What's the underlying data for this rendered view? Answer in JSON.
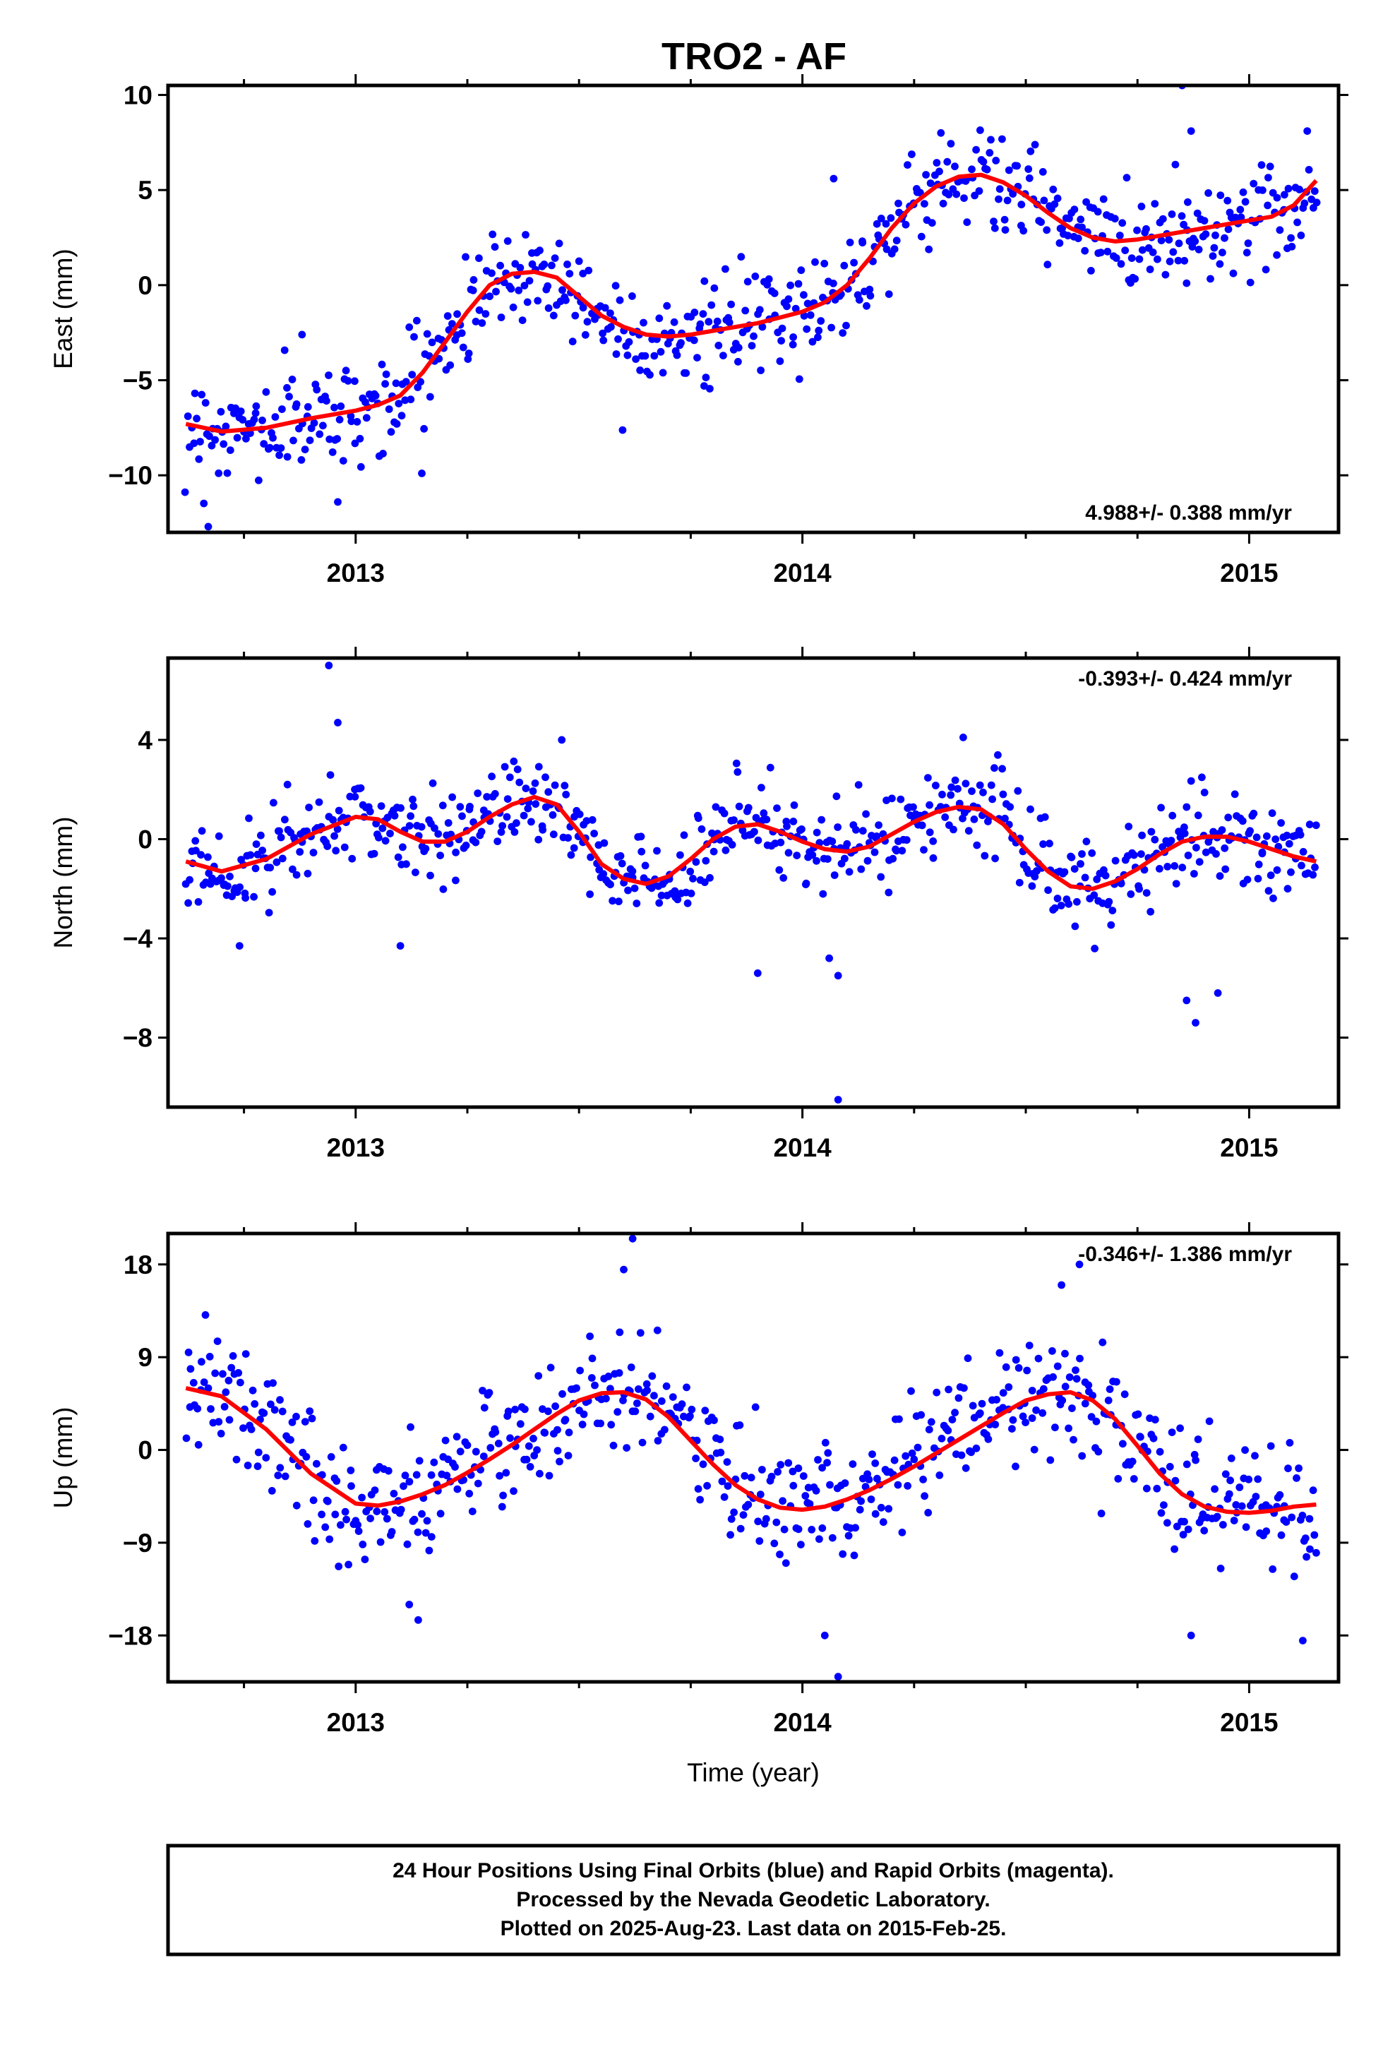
{
  "title": "TRO2 - AF",
  "colors": {
    "final_orbits": "#0000ff",
    "fit": "#ff0000",
    "frame": "#000000"
  },
  "chart_data": [
    {
      "type": "scatter",
      "panel": "east",
      "ylabel": "East (mm)",
      "xlabel": "",
      "xlim": [
        2012.58,
        2015.2
      ],
      "ylim": [
        -13,
        10.5
      ],
      "yticks": [
        10,
        5,
        0,
        -5,
        -10
      ],
      "ytick_labels": [
        "10",
        "5",
        "0",
        "−5",
        "−10"
      ],
      "xticks": [
        2013,
        2014,
        2015
      ],
      "xtick_labels": [
        "2013",
        "2014",
        "2015"
      ],
      "rate_label": "4.988+/- 0.388 mm/yr",
      "rate_position": "bottom-right",
      "series": [
        {
          "kind": "points"
        },
        {
          "kind": "fit"
        }
      ],
      "samples_x": [
        2012.62,
        2012.7,
        2012.8,
        2012.9,
        2013.0,
        2013.05,
        2013.1,
        2013.15,
        2013.2,
        2013.25,
        2013.3,
        2013.35,
        2013.4,
        2013.45,
        2013.5,
        2013.55,
        2013.6,
        2013.65,
        2013.7,
        2013.75,
        2013.8,
        2013.85,
        2013.9,
        2013.95,
        2014.0,
        2014.05,
        2014.1,
        2014.15,
        2014.2,
        2014.25,
        2014.3,
        2014.35,
        2014.4,
        2014.45,
        2014.5,
        2014.55,
        2014.6,
        2014.65,
        2014.7,
        2014.75,
        2014.8,
        2014.85,
        2014.9,
        2014.95,
        2015.0,
        2015.05,
        2015.1,
        2015.15
      ],
      "fit_y": [
        -7.3,
        -7.7,
        -7.5,
        -7.0,
        -6.6,
        -6.3,
        -5.8,
        -4.6,
        -3.0,
        -1.4,
        0.0,
        0.6,
        0.7,
        0.4,
        -0.6,
        -1.6,
        -2.2,
        -2.6,
        -2.7,
        -2.6,
        -2.4,
        -2.2,
        -2.0,
        -1.7,
        -1.4,
        -0.9,
        0.0,
        1.4,
        3.0,
        4.3,
        5.2,
        5.7,
        5.8,
        5.4,
        4.7,
        3.8,
        3.0,
        2.5,
        2.3,
        2.4,
        2.6,
        2.8,
        3.0,
        3.2,
        3.4,
        3.6,
        4.2,
        5.5
      ],
      "scatter_sd": 1.3,
      "point_count": 620,
      "outliers": [
        [
          2012.67,
          -12.7
        ],
        [
          2012.96,
          -11.4
        ],
        [
          2014.07,
          5.6
        ],
        [
          2014.31,
          8.0
        ],
        [
          2014.85,
          10.5
        ],
        [
          2014.87,
          8.1
        ],
        [
          2014.86,
          0.1
        ],
        [
          2015.13,
          8.1
        ],
        [
          2013.78,
          -5.3
        ],
        [
          2012.88,
          -2.6
        ]
      ]
    },
    {
      "type": "scatter",
      "panel": "north",
      "ylabel": "North (mm)",
      "xlabel": "",
      "xlim": [
        2012.58,
        2015.2
      ],
      "ylim": [
        -10.8,
        7.3
      ],
      "yticks": [
        4,
        0,
        -4,
        -8
      ],
      "ytick_labels": [
        "4",
        "0",
        "−4",
        "−8"
      ],
      "xticks": [
        2013,
        2014,
        2015
      ],
      "xtick_labels": [
        "2013",
        "2014",
        "2015"
      ],
      "rate_label": "-0.393+/- 0.424 mm/yr",
      "rate_position": "top-right",
      "series": [
        {
          "kind": "points"
        },
        {
          "kind": "fit"
        }
      ],
      "samples_x": [
        2012.62,
        2012.7,
        2012.8,
        2012.9,
        2013.0,
        2013.05,
        2013.1,
        2013.15,
        2013.2,
        2013.25,
        2013.3,
        2013.35,
        2013.4,
        2013.45,
        2013.5,
        2013.55,
        2013.6,
        2013.65,
        2013.7,
        2013.75,
        2013.8,
        2013.85,
        2013.9,
        2013.95,
        2014.0,
        2014.05,
        2014.1,
        2014.15,
        2014.2,
        2014.25,
        2014.3,
        2014.35,
        2014.4,
        2014.45,
        2014.5,
        2014.55,
        2014.6,
        2014.65,
        2014.7,
        2014.75,
        2014.8,
        2014.85,
        2014.9,
        2014.95,
        2015.0,
        2015.05,
        2015.1,
        2015.15
      ],
      "fit_y": [
        -0.9,
        -1.3,
        -0.8,
        0.2,
        0.9,
        0.8,
        0.3,
        -0.1,
        -0.1,
        0.3,
        0.9,
        1.4,
        1.7,
        1.4,
        0.3,
        -1.0,
        -1.6,
        -1.8,
        -1.5,
        -0.8,
        0.0,
        0.5,
        0.6,
        0.3,
        -0.1,
        -0.4,
        -0.5,
        -0.3,
        0.2,
        0.7,
        1.1,
        1.3,
        1.2,
        0.6,
        -0.4,
        -1.3,
        -1.9,
        -2.0,
        -1.7,
        -1.2,
        -0.6,
        -0.1,
        0.1,
        0.1,
        -0.1,
        -0.4,
        -0.7,
        -0.9
      ],
      "scatter_sd": 0.95,
      "point_count": 640,
      "outliers": [
        [
          2012.94,
          7.0
        ],
        [
          2012.96,
          4.7
        ],
        [
          2014.08,
          -10.5
        ],
        [
          2014.06,
          -4.8
        ],
        [
          2014.08,
          -5.5
        ],
        [
          2013.9,
          -5.4
        ],
        [
          2014.86,
          -6.5
        ],
        [
          2014.88,
          -7.4
        ],
        [
          2014.93,
          -6.2
        ],
        [
          2014.36,
          4.1
        ],
        [
          2013.1,
          -4.3
        ],
        [
          2012.74,
          -4.3
        ]
      ]
    },
    {
      "type": "scatter",
      "panel": "up",
      "ylabel": "Up (mm)",
      "xlabel": "Time (year)",
      "xlim": [
        2012.58,
        2015.2
      ],
      "ylim": [
        -22.5,
        21
      ],
      "yticks": [
        18,
        9,
        0,
        -9,
        -18
      ],
      "ytick_labels": [
        "18",
        "9",
        "0",
        "−9",
        "−18"
      ],
      "xticks": [
        2013,
        2014,
        2015
      ],
      "xtick_labels": [
        "2013",
        "2014",
        "2015"
      ],
      "rate_label": "-0.346+/- 1.386 mm/yr",
      "rate_position": "top-right",
      "series": [
        {
          "kind": "points"
        },
        {
          "kind": "fit"
        }
      ],
      "samples_x": [
        2012.62,
        2012.7,
        2012.8,
        2012.9,
        2013.0,
        2013.05,
        2013.1,
        2013.15,
        2013.2,
        2013.25,
        2013.3,
        2013.35,
        2013.4,
        2013.45,
        2013.5,
        2013.55,
        2013.6,
        2013.65,
        2013.7,
        2013.75,
        2013.8,
        2013.85,
        2013.9,
        2013.95,
        2014.0,
        2014.05,
        2014.1,
        2014.15,
        2014.2,
        2014.25,
        2014.3,
        2014.35,
        2014.4,
        2014.45,
        2014.5,
        2014.55,
        2014.6,
        2014.65,
        2014.7,
        2014.75,
        2014.8,
        2014.85,
        2014.9,
        2014.95,
        2015.0,
        2015.05,
        2015.1,
        2015.15
      ],
      "fit_y": [
        6.0,
        5.2,
        2.0,
        -2.3,
        -5.2,
        -5.4,
        -5.0,
        -4.3,
        -3.4,
        -2.2,
        -0.9,
        0.5,
        2.0,
        3.5,
        4.8,
        5.5,
        5.6,
        4.9,
        3.2,
        0.9,
        -1.4,
        -3.4,
        -4.8,
        -5.6,
        -5.8,
        -5.5,
        -4.8,
        -3.9,
        -2.8,
        -1.6,
        -0.3,
        1.0,
        2.3,
        3.6,
        4.8,
        5.4,
        5.6,
        4.8,
        3.0,
        0.4,
        -2.3,
        -4.3,
        -5.5,
        -6.0,
        -6.1,
        -5.9,
        -5.5,
        -5.3
      ],
      "scatter_sd": 3.0,
      "point_count": 620,
      "outliers": [
        [
          2013.62,
          20.5
        ],
        [
          2013.6,
          17.5
        ],
        [
          2014.58,
          16.0
        ],
        [
          2014.62,
          18.0
        ],
        [
          2014.08,
          -22.0
        ],
        [
          2014.05,
          -18.0
        ],
        [
          2014.87,
          -18.0
        ],
        [
          2015.12,
          -18.5
        ],
        [
          2013.14,
          -16.5
        ],
        [
          2013.12,
          -15.0
        ]
      ]
    }
  ],
  "footer": {
    "line1": "24 Hour Positions Using Final Orbits (blue) and Rapid Orbits (magenta).",
    "line2": "Processed by the Nevada Geodetic Laboratory.",
    "line3": "Plotted on 2025-Aug-23. Last data on 2015-Feb-25."
  }
}
